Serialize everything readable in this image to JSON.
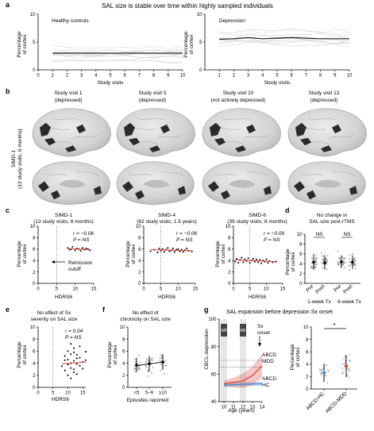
{
  "panels": {
    "a": {
      "letter": "a",
      "title": "SAL size is stable over time within highly sampled individuals",
      "left": {
        "label": "Healthy controls"
      },
      "right": {
        "label": "Depression"
      },
      "ylabel_1": "Percentage",
      "ylabel_2": "of cortex",
      "xlabel": "Study visits"
    },
    "b": {
      "letter": "b",
      "visits": [
        {
          "l1": "Study visit 1",
          "l2": "(depressed)"
        },
        {
          "l1": "Study visit 5",
          "l2": "(depressed)"
        },
        {
          "l1": "Study visit 10",
          "l2": "(not actively depressed)"
        },
        {
          "l1": "Study visit 13",
          "l2": "(depressed)"
        }
      ],
      "subject_1": "SIMD-1",
      "subject_2": "(13 study visits, 6 months)"
    },
    "c": {
      "letter": "c",
      "plots": [
        {
          "t1": "SIMD-1",
          "t2": "(13 study visits, 6 months)",
          "r": "r = −0.06",
          "p": "P = NS"
        },
        {
          "t1": "SIMD-4",
          "t2": "(62 study visits, 1.5 years)",
          "r": "r = −0.06",
          "p": "P = NS"
        },
        {
          "t1": "SIMD-6",
          "t2": "(39 study visits, 8 months)",
          "r": "r = −0.09",
          "p": "P = NS"
        }
      ],
      "annotation_1": "Remission",
      "annotation_2": "cutoff",
      "xlabel": "HDRS6"
    },
    "d": {
      "letter": "d",
      "t1": "No change in",
      "t2": "SAL size post-rTMS",
      "ns": "NS",
      "pre": "Pre",
      "post": "Post",
      "tx1": "1-week Tx",
      "tx2": "6-week Tx"
    },
    "e": {
      "letter": "e",
      "t1": "No effect of Sx",
      "t2": "severity on SAL size",
      "r": "r = 0.04",
      "p": "P = NS",
      "xlabel": "HDRS6"
    },
    "f": {
      "letter": "f",
      "t1": "No effect of",
      "t2": "chronicity on SAL size",
      "xlabel": "Episodes reported"
    },
    "g": {
      "letter": "g",
      "title": "SAL expansion before depression Sx onset",
      "ylabel": "CBCL-depression",
      "xlabel": "Age (years)",
      "mri": "MRI",
      "onset_1": "Sx",
      "onset_2": "onset",
      "mdd_1": "ABCD",
      "mdd_2": "MDD",
      "hc_1": "ABCD",
      "hc_2": "HC",
      "star": "*",
      "cat_hc": "ABCD-HC",
      "cat_mdd": "ABCD-MDD"
    }
  },
  "common": {
    "ylabel_1": "Percentage",
    "ylabel_2": "of cortex"
  },
  "colors": {
    "mdd_red": "#d9463f",
    "hc_blue": "#4d8fd1",
    "fit_red": "#e03a30",
    "brain_light": "#d4d4d4",
    "brain_dark": "#2a2a2a"
  },
  "chart_data": [
    {
      "type": "line",
      "panel": "a-left",
      "x": [
        1,
        2,
        3,
        4,
        5,
        6,
        7,
        8,
        9,
        10
      ],
      "series": [
        {
          "values": [
            3,
            3,
            3,
            3,
            3,
            3,
            3,
            3,
            3,
            3
          ]
        }
      ],
      "xlim": [
        0,
        10
      ],
      "ylim": [
        0,
        10
      ],
      "xticks": [
        0,
        1,
        2,
        3,
        4,
        5,
        6,
        7,
        8,
        9,
        10
      ],
      "yticks": [
        0,
        5,
        10
      ],
      "xlabel": "Study visits"
    },
    {
      "type": "line",
      "panel": "a-right",
      "x": [
        1,
        2,
        3,
        4,
        5,
        6,
        7,
        8,
        9,
        10
      ],
      "series": [
        {
          "values": [
            5.5,
            5.6,
            5.8,
            5.6,
            5.7,
            5.8,
            5.7,
            5.6,
            5.6,
            5.6
          ]
        }
      ],
      "xlim": [
        0,
        10
      ],
      "ylim": [
        0,
        10
      ],
      "xticks": [
        1,
        2,
        3,
        4,
        5,
        6,
        7,
        8,
        9,
        10
      ],
      "yticks": [
        0,
        5,
        10
      ],
      "xlabel": "Study visits"
    },
    {
      "type": "scatter",
      "panel": "c-1",
      "points": [
        [
          8,
          6.2
        ],
        [
          8.5,
          5.9
        ],
        [
          9,
          6.0
        ],
        [
          9.3,
          6.4
        ],
        [
          10,
          5.8
        ],
        [
          10.5,
          6.1
        ],
        [
          11,
          6.0
        ],
        [
          11.5,
          5.7
        ],
        [
          12,
          6.2
        ],
        [
          12.5,
          5.9
        ],
        [
          13,
          6.1
        ],
        [
          13.5,
          6.0
        ],
        [
          14,
          5.8
        ]
      ],
      "fit": [
        [
          8,
          6.1
        ],
        [
          14,
          5.9
        ]
      ],
      "xlim": [
        0,
        15
      ],
      "ylim": [
        0,
        10
      ],
      "xticks": [
        0,
        5,
        10,
        15
      ],
      "yticks": [
        0,
        2,
        4,
        6,
        8,
        10
      ],
      "cutoff": 5
    },
    {
      "type": "scatter",
      "panel": "c-2",
      "points": [
        [
          2,
          5.6
        ],
        [
          3,
          5.9
        ],
        [
          4,
          5.4
        ],
        [
          4.5,
          6.1
        ],
        [
          5,
          5.7
        ],
        [
          5.5,
          6.0
        ],
        [
          6,
          5.5
        ],
        [
          6.5,
          5.9
        ],
        [
          7,
          6.2
        ],
        [
          7.5,
          5.6
        ],
        [
          8,
          5.8
        ],
        [
          8.5,
          6.1
        ],
        [
          9,
          5.5
        ],
        [
          9.5,
          5.9
        ],
        [
          10,
          6.0
        ],
        [
          10.5,
          5.6
        ],
        [
          11,
          5.9
        ],
        [
          11.5,
          5.5
        ],
        [
          12,
          5.8
        ],
        [
          12.5,
          6.1
        ],
        [
          13,
          5.7
        ],
        [
          14,
          5.6
        ]
      ],
      "fit": [
        [
          2,
          5.9
        ],
        [
          14,
          5.7
        ]
      ],
      "xlim": [
        0,
        15
      ],
      "ylim": [
        0,
        10
      ],
      "xticks": [
        0,
        5,
        10,
        15
      ],
      "yticks": [
        0,
        2,
        4,
        6,
        8,
        10
      ],
      "cutoff": 5
    },
    {
      "type": "scatter",
      "panel": "c-3",
      "points": [
        [
          0.5,
          3.8
        ],
        [
          1,
          4.3
        ],
        [
          1.5,
          3.6
        ],
        [
          2,
          4.1
        ],
        [
          2.5,
          4.5
        ],
        [
          3,
          3.7
        ],
        [
          3.5,
          4.2
        ],
        [
          4,
          3.9
        ],
        [
          4.5,
          4.4
        ],
        [
          5,
          3.6
        ],
        [
          5.5,
          4.0
        ],
        [
          6,
          4.3
        ],
        [
          6.5,
          3.8
        ],
        [
          7,
          4.2
        ],
        [
          7.5,
          3.7
        ],
        [
          8,
          4.1
        ],
        [
          8.5,
          3.5
        ],
        [
          9,
          4.0
        ],
        [
          9.5,
          3.8
        ],
        [
          10,
          4.2
        ],
        [
          10.5,
          3.6
        ],
        [
          11,
          3.9
        ],
        [
          12,
          3.7
        ],
        [
          13,
          3.8
        ]
      ],
      "fit": [
        [
          0.5,
          4.1
        ],
        [
          13,
          3.8
        ]
      ],
      "xlim": [
        0,
        15
      ],
      "ylim": [
        0,
        10
      ],
      "xticks": [
        0,
        5,
        10,
        15
      ],
      "yticks": [
        0,
        2,
        4,
        6,
        8,
        10
      ],
      "cutoff": 5
    },
    {
      "type": "scatter",
      "panel": "d",
      "groups": [
        {
          "label": "Pre",
          "mean": 4.3,
          "sd": 1.5
        },
        {
          "label": "Post",
          "mean": 4.2,
          "sd": 1.4
        },
        {
          "label": "Pre",
          "mean": 4.4,
          "sd": 1.3
        },
        {
          "label": "Post",
          "mean": 4.3,
          "sd": 1.4
        }
      ],
      "ylim": [
        0,
        10
      ],
      "yticks": [
        0,
        2,
        4,
        6,
        8,
        10
      ]
    },
    {
      "type": "scatter",
      "panel": "e",
      "points": [
        [
          8,
          3.5
        ],
        [
          9,
          4.5
        ],
        [
          9,
          2.8
        ],
        [
          9,
          5.2
        ],
        [
          10,
          3.8
        ],
        [
          10,
          6.0
        ],
        [
          10,
          2.0
        ],
        [
          10,
          4.6
        ],
        [
          11,
          3.2
        ],
        [
          11,
          5.5
        ],
        [
          11,
          4.0
        ],
        [
          11,
          7.2
        ],
        [
          11,
          1.5
        ],
        [
          12,
          4.4
        ],
        [
          12,
          3.0
        ],
        [
          12,
          5.8
        ],
        [
          12,
          2.5
        ],
        [
          12,
          6.5
        ],
        [
          13,
          3.9
        ],
        [
          13,
          4.8
        ],
        [
          13,
          2.2
        ],
        [
          13,
          5.4
        ],
        [
          14,
          3.6
        ],
        [
          14,
          4.9
        ],
        [
          14,
          6.8
        ],
        [
          15,
          4.2
        ],
        [
          15,
          3.1
        ],
        [
          16,
          4.5
        ],
        [
          16,
          5.9
        ]
      ],
      "fit": [
        [
          8,
          3.9
        ],
        [
          16,
          4.2
        ]
      ],
      "xlim": [
        0,
        16
      ],
      "ylim": [
        0,
        10
      ],
      "xticks": [
        0,
        5,
        10,
        15
      ],
      "yticks": [
        0,
        2,
        4,
        6,
        8,
        10
      ],
      "cutoff": 5
    },
    {
      "type": "scatter",
      "panel": "f",
      "categories": [
        "<5",
        "5–9",
        "≥10"
      ],
      "groups": [
        {
          "mean": 3.7,
          "sd": 1.2
        },
        {
          "mean": 3.9,
          "sd": 1.3
        },
        {
          "mean": 4.2,
          "sd": 1.3
        }
      ],
      "fit": [
        [
          0,
          3.6
        ],
        [
          2,
          4.2
        ]
      ],
      "ylim": [
        0,
        10
      ],
      "yticks": [
        0,
        2,
        4,
        6,
        8,
        10
      ]
    },
    {
      "type": "line",
      "panel": "g-left",
      "x": [
        10,
        11,
        12,
        13,
        14
      ],
      "series": [
        {
          "name": "ABCD MDD",
          "values": [
            53,
            54,
            55,
            59,
            66
          ]
        },
        {
          "name": "ABCD HC",
          "values": [
            52,
            52.3,
            52.6,
            52.8,
            53
          ]
        }
      ],
      "xlim": [
        9.5,
        14
      ],
      "ylim": [
        40,
        100
      ],
      "xticks": [
        10,
        11,
        12,
        13,
        14
      ],
      "yticks": [
        40,
        60,
        80,
        100
      ],
      "reference_lines": [
        65,
        70
      ]
    },
    {
      "type": "scatter",
      "panel": "g-right",
      "categories": [
        "ABCD-HC",
        "ABCD-MDD"
      ],
      "groups": [
        {
          "mean": 2.6,
          "sd": 1.5
        },
        {
          "mean": 3.7,
          "sd": 1.8
        }
      ],
      "ylim": [
        0,
        10
      ],
      "yticks": [
        0,
        2,
        4,
        6,
        8,
        10
      ]
    }
  ]
}
